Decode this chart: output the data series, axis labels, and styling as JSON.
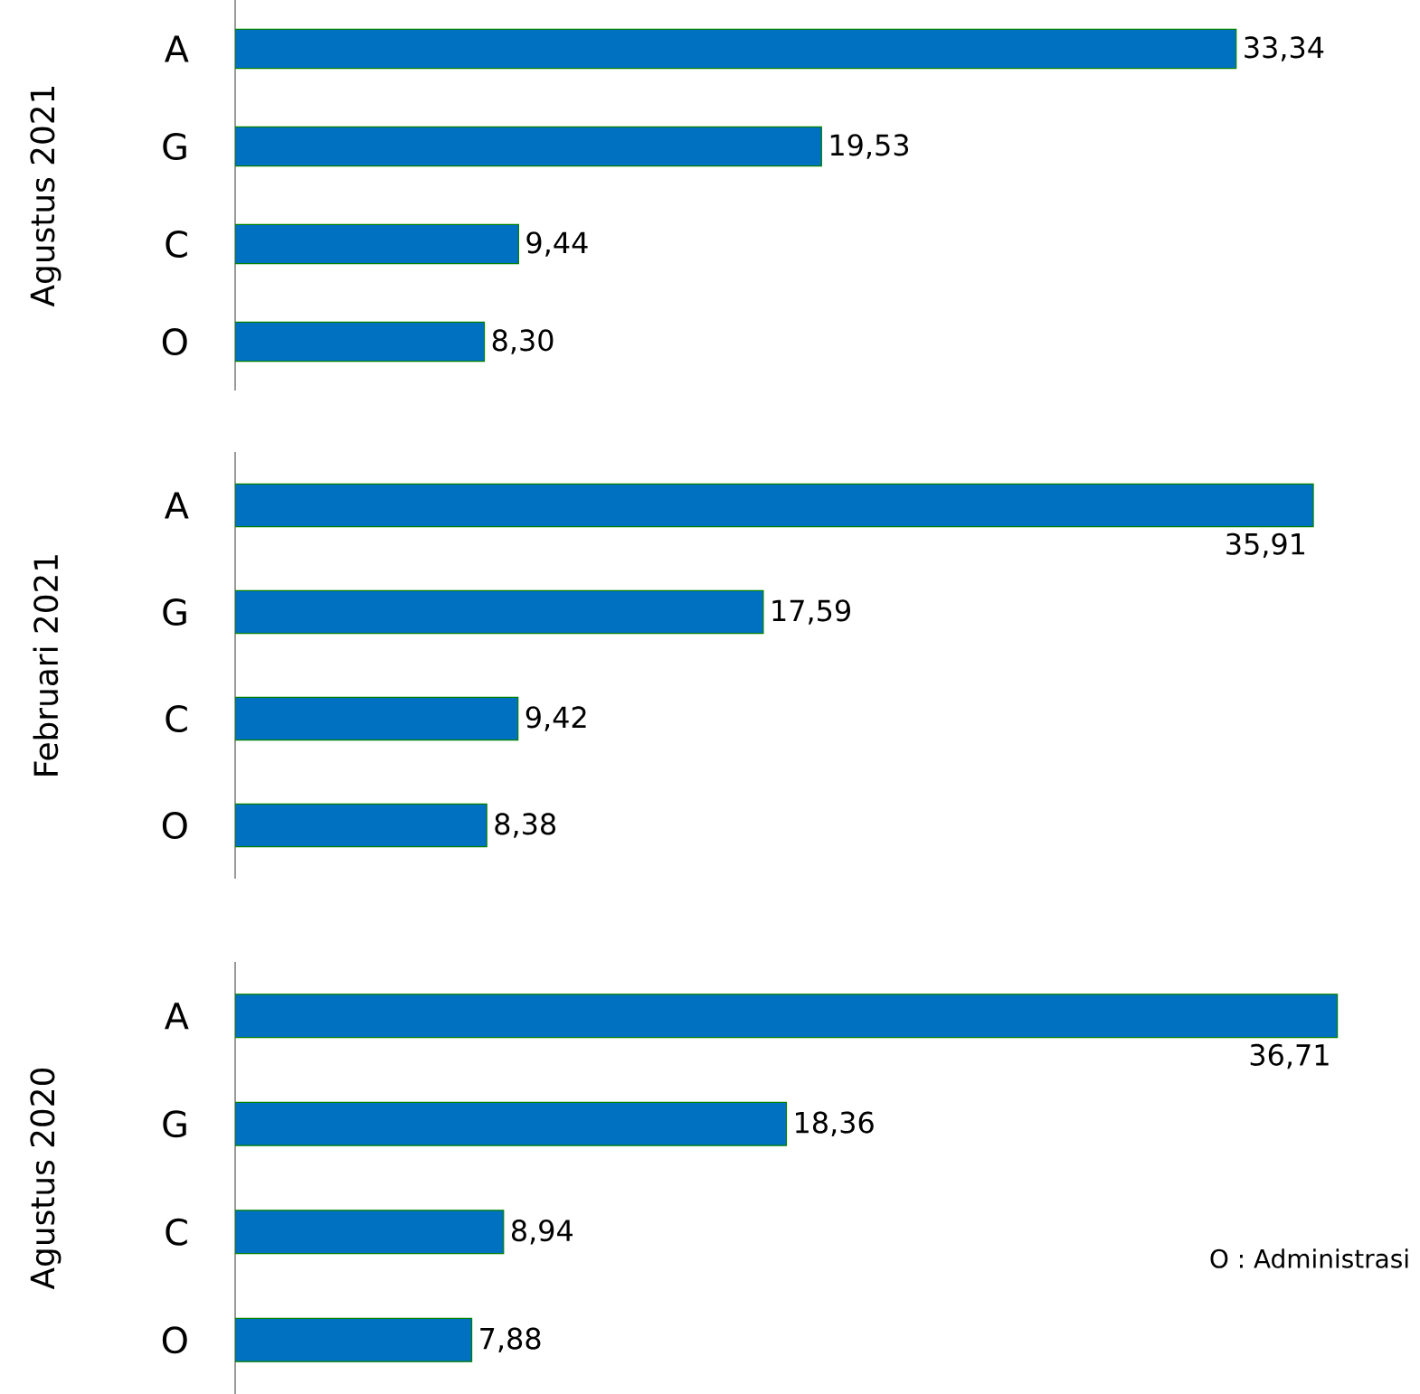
{
  "chart_data": [
    {
      "type": "bar",
      "orientation": "horizontal",
      "ylabel": "Agustus 2021",
      "categories": [
        "A",
        "G",
        "C",
        "O"
      ],
      "values": [
        33.34,
        19.53,
        9.44,
        8.3
      ],
      "value_labels": [
        "33,34",
        "19,53",
        "9,44",
        "8,30"
      ],
      "color": "#0070c0",
      "tick_labels": "y"
    },
    {
      "type": "bar",
      "orientation": "horizontal",
      "ylabel": "Februari 2021",
      "categories": [
        "A",
        "G",
        "C",
        "O"
      ],
      "values": [
        35.91,
        17.59,
        9.42,
        8.38
      ],
      "value_labels": [
        "35,91",
        "17,59",
        "9,42",
        "8,38"
      ],
      "color": "#0070c0",
      "tick_labels": "y"
    },
    {
      "type": "bar",
      "orientation": "horizontal",
      "ylabel": "Agustus 2020",
      "categories": [
        "A",
        "G",
        "C",
        "O"
      ],
      "values": [
        36.71,
        18.36,
        8.94,
        7.88
      ],
      "value_labels": [
        "36,71",
        "18,36",
        "8,94",
        "7,88"
      ],
      "color": "#0070c0",
      "tick_labels": "y",
      "annotations": [
        "O : Administrasi"
      ]
    }
  ]
}
